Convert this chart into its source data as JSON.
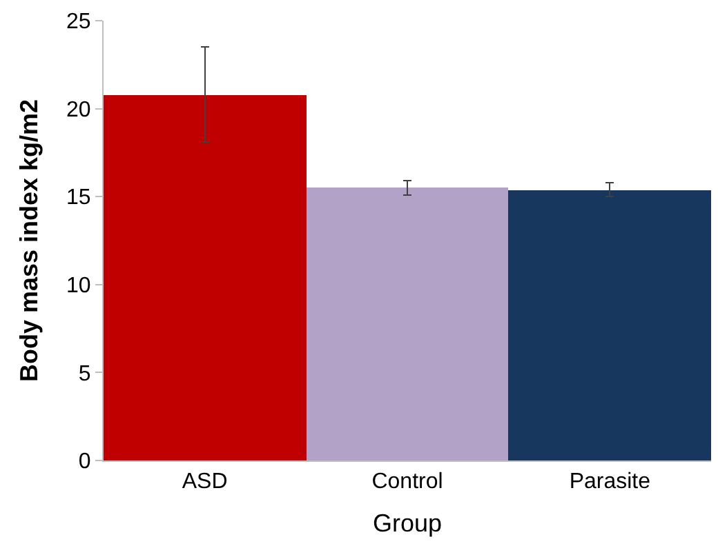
{
  "chart_data": {
    "type": "bar",
    "xlabel": "Group",
    "ylabel": "Body mass index kg/m2",
    "categories": [
      "ASD",
      "Control",
      "Parasite"
    ],
    "values": [
      20.8,
      15.5,
      15.4
    ],
    "errors": [
      2.7,
      0.4,
      0.4
    ],
    "colors": [
      "#c00000",
      "#b3a2c7",
      "#17375e"
    ],
    "ylim": [
      0,
      25
    ],
    "yticks": [
      0,
      5,
      10,
      15,
      20,
      25
    ]
  }
}
